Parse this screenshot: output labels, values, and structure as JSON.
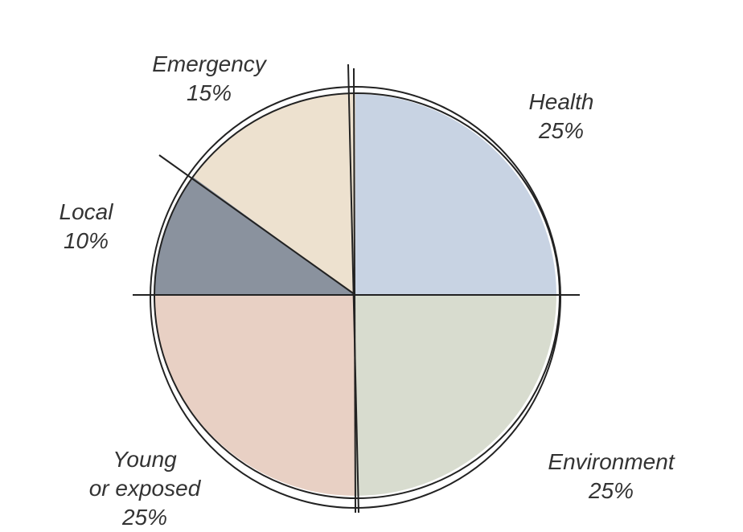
{
  "chart_data": {
    "type": "pie",
    "categories": [
      "Health",
      "Environment",
      "Young\nor exposed",
      "Local",
      "Emergency"
    ],
    "values": [
      25,
      25,
      25,
      10,
      15
    ],
    "value_labels": [
      "25%",
      "25%",
      "25%",
      "10%",
      "15%"
    ],
    "colors": [
      "#c8d3e3",
      "#d8dccf",
      "#e8d0c4",
      "#8a929e",
      "#ede1cf"
    ]
  }
}
